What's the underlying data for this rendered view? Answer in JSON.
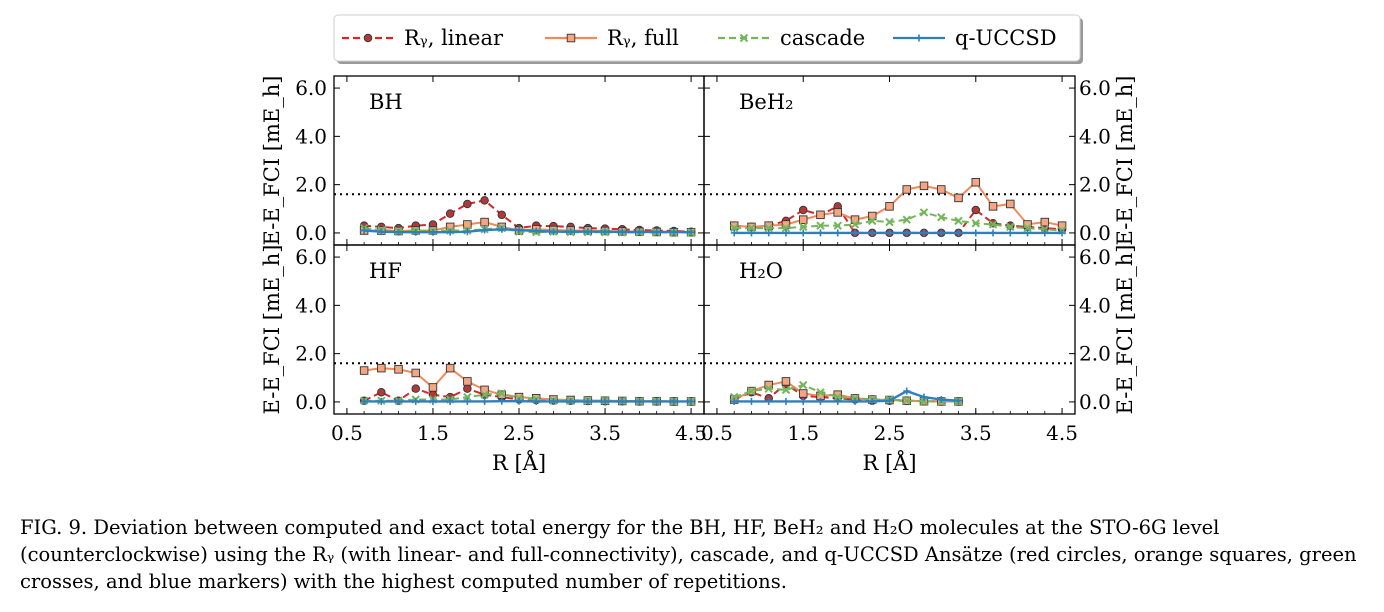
{
  "caption": "FIG. 9.  Deviation between computed and exact total energy for the BH, HF, BeH₂ and H₂O molecules at the STO-6G level (counterclockwise) using the Rᵧ (with linear- and full-connectivity), cascade, and q-UCCSD Ansätze (red circles, orange squares, green crosses, and blue markers) with the highest computed number of repetitions.",
  "colors": {
    "ry_linear": "#d62728",
    "ry_linear_face": "#b03a3a",
    "ry_full": "#ef8a5a",
    "ry_full_face": "#f4a582",
    "cascade": "#74b55b",
    "q_uccsd": "#2e7fc0"
  },
  "legend": [
    {
      "key": "ry_linear",
      "label": "Rᵧ, linear",
      "marker": "circle",
      "dash": "dashed"
    },
    {
      "key": "ry_full",
      "label": "Rᵧ, full",
      "marker": "square",
      "dash": "solid"
    },
    {
      "key": "cascade",
      "label": "cascade",
      "marker": "cross",
      "dash": "dashed"
    },
    {
      "key": "q_uccsd",
      "label": "q-UCCSD",
      "marker": "plus",
      "dash": "solid"
    }
  ],
  "chart_data": [
    {
      "type": "line",
      "title": "BH",
      "xlabel": "",
      "ylabel": "E-E_FCI [mE_h]",
      "xlim": [
        0.35,
        4.65
      ],
      "ylim": [
        -0.5,
        6.5
      ],
      "xticks": [
        "0.5",
        "1.5",
        "2.5",
        "3.5",
        "4.5"
      ],
      "yticks": [
        "0.0",
        "2.0",
        "4.0",
        "6.0"
      ],
      "threshold": 1.6,
      "x": [
        0.7,
        0.9,
        1.1,
        1.3,
        1.5,
        1.7,
        1.9,
        2.1,
        2.3,
        2.5,
        2.7,
        2.9,
        3.1,
        3.3,
        3.5,
        3.7,
        3.9,
        4.1,
        4.3,
        4.5
      ],
      "series": [
        {
          "name": "Rᵧ, linear",
          "values": [
            0.3,
            0.25,
            0.2,
            0.3,
            0.35,
            0.8,
            1.2,
            1.35,
            0.75,
            0.2,
            0.3,
            0.28,
            0.25,
            0.2,
            0.18,
            0.15,
            0.12,
            0.1,
            0.08,
            0.05
          ]
        },
        {
          "name": "Rᵧ, full",
          "values": [
            0.1,
            0.1,
            0.08,
            0.1,
            0.1,
            0.25,
            0.35,
            0.45,
            0.25,
            0.1,
            0.15,
            0.12,
            0.1,
            0.1,
            0.08,
            0.06,
            0.05,
            0.04,
            0.03,
            0.03
          ]
        },
        {
          "name": "cascade",
          "values": [
            0.2,
            0.12,
            0.08,
            0.08,
            0.08,
            0.1,
            0.1,
            0.15,
            0.2,
            0.05,
            0.03,
            0.05,
            0.03,
            0.03,
            0.03,
            0.02,
            0.02,
            0.02,
            0.02,
            0.02
          ]
        },
        {
          "name": "q-UCCSD",
          "values": [
            0.1,
            0.05,
            0.03,
            0.03,
            0.03,
            0.03,
            0.05,
            0.12,
            0.15,
            0.12,
            0.08,
            0.05,
            0.05,
            0.05,
            0.05,
            0.04,
            0.04,
            0.04,
            0.04,
            0.03
          ]
        }
      ]
    },
    {
      "type": "line",
      "title": "BeH₂",
      "xlabel": "",
      "ylabel": "E-E_FCI [mE_h]",
      "xlim": [
        0.35,
        4.65
      ],
      "ylim": [
        -0.5,
        6.5
      ],
      "xticks": [
        "0.5",
        "1.5",
        "2.5",
        "3.5",
        "4.5"
      ],
      "yticks": [
        "0.0",
        "2.0",
        "4.0",
        "6.0"
      ],
      "threshold": 1.6,
      "x": [
        0.7,
        0.9,
        1.1,
        1.3,
        1.5,
        1.7,
        1.9,
        2.1,
        2.3,
        2.5,
        2.7,
        2.9,
        3.1,
        3.3,
        3.5,
        3.7,
        3.9,
        4.1,
        4.3,
        4.5
      ],
      "series": [
        {
          "name": "Rᵧ, linear",
          "values": [
            0.3,
            0.25,
            0.3,
            0.5,
            0.95,
            0.75,
            1.1,
            0.0,
            0.0,
            0.0,
            0.0,
            0.0,
            0.0,
            0.0,
            0.95,
            0.4,
            0.3,
            0.25,
            0.2,
            0.15
          ]
        },
        {
          "name": "Rᵧ, full",
          "values": [
            0.3,
            0.25,
            0.3,
            0.35,
            0.55,
            0.75,
            0.85,
            0.55,
            0.7,
            1.1,
            1.8,
            1.95,
            1.8,
            1.45,
            2.1,
            1.1,
            1.2,
            0.35,
            0.45,
            0.3
          ]
        },
        {
          "name": "cascade",
          "values": [
            0.2,
            0.2,
            0.2,
            0.2,
            0.25,
            0.3,
            0.3,
            0.35,
            0.5,
            0.45,
            0.55,
            0.85,
            0.65,
            0.5,
            0.4,
            0.35,
            0.25,
            0.2,
            0.15,
            0.1
          ]
        },
        {
          "name": "q-UCCSD",
          "values": [
            0.0,
            0.0,
            0.0,
            0.0,
            0.0,
            0.0,
            0.0,
            0.0,
            0.0,
            0.0,
            0.0,
            0.0,
            0.0,
            0.0,
            0.0,
            0.0,
            0.0,
            0.0,
            0.0,
            0.0
          ]
        }
      ]
    },
    {
      "type": "line",
      "title": "HF",
      "xlabel": "R [Å]",
      "ylabel": "E-E_FCI [mE_h]",
      "xlim": [
        0.35,
        4.65
      ],
      "ylim": [
        -0.5,
        6.5
      ],
      "xticks": [
        "0.5",
        "1.5",
        "2.5",
        "3.5",
        "4.5"
      ],
      "yticks": [
        "0.0",
        "2.0",
        "4.0",
        "6.0"
      ],
      "threshold": 1.6,
      "x": [
        0.7,
        0.9,
        1.1,
        1.3,
        1.5,
        1.7,
        1.9,
        2.1,
        2.3,
        2.5,
        2.7,
        2.9,
        3.1,
        3.3,
        3.5,
        3.7,
        3.9,
        4.1,
        4.3,
        4.5
      ],
      "series": [
        {
          "name": "Rᵧ, linear",
          "values": [
            0.05,
            0.4,
            0.05,
            0.55,
            0.3,
            0.2,
            0.55,
            0.3,
            0.2,
            0.1,
            0.08,
            0.06,
            0.05,
            0.04,
            0.03,
            0.03,
            0.02,
            0.02,
            0.02,
            0.02
          ]
        },
        {
          "name": "Rᵧ, full",
          "values": [
            1.3,
            1.4,
            1.35,
            1.2,
            0.6,
            1.4,
            0.85,
            0.5,
            0.3,
            0.2,
            0.15,
            0.1,
            0.08,
            0.06,
            0.05,
            0.04,
            0.03,
            0.03,
            0.02,
            0.02
          ]
        },
        {
          "name": "cascade",
          "values": [
            0.05,
            0.05,
            0.05,
            0.1,
            0.1,
            0.1,
            0.2,
            0.3,
            0.35,
            0.15,
            0.1,
            0.05,
            0.05,
            0.05,
            0.05,
            0.04,
            0.03,
            0.03,
            0.02,
            0.02
          ]
        },
        {
          "name": "q-UCCSD",
          "values": [
            0.02,
            0.02,
            0.02,
            0.02,
            0.02,
            0.02,
            0.02,
            0.02,
            0.03,
            0.03,
            0.02,
            0.02,
            0.02,
            0.02,
            0.02,
            0.02,
            0.02,
            0.02,
            0.02,
            0.02
          ]
        }
      ]
    },
    {
      "type": "line",
      "title": "H₂O",
      "xlabel": "R [Å]",
      "ylabel": "E-E_FCI [mE_h]",
      "xlim": [
        0.35,
        4.65
      ],
      "ylim": [
        -0.5,
        6.5
      ],
      "xticks": [
        "0.5",
        "1.5",
        "2.5",
        "3.5",
        "4.5"
      ],
      "yticks": [
        "0.0",
        "2.0",
        "4.0",
        "6.0"
      ],
      "threshold": 1.6,
      "x": [
        0.7,
        0.9,
        1.1,
        1.3,
        1.5,
        1.7,
        1.9,
        2.1,
        2.3,
        2.5,
        2.7,
        2.9,
        3.1,
        3.3
      ],
      "series": [
        {
          "name": "Rᵧ, linear",
          "values": [
            0.1,
            0.4,
            0.15,
            0.75,
            0.25,
            0.2,
            0.15,
            0.1,
            0.05,
            0.05,
            0.05,
            0.03,
            0.02,
            0.02
          ]
        },
        {
          "name": "Rᵧ, full",
          "values": [
            0.1,
            0.45,
            0.7,
            0.85,
            0.35,
            0.25,
            0.3,
            0.15,
            0.1,
            0.08,
            0.05,
            0.03,
            0.02,
            0.02
          ]
        },
        {
          "name": "cascade",
          "values": [
            0.2,
            0.45,
            0.55,
            0.5,
            0.7,
            0.4,
            0.2,
            0.15,
            0.1,
            0.1,
            0.05,
            0.03,
            0.02,
            0.02
          ]
        },
        {
          "name": "q-UCCSD",
          "values": [
            0.02,
            0.02,
            0.02,
            0.02,
            0.02,
            0.02,
            0.02,
            0.02,
            0.02,
            0.05,
            0.45,
            0.2,
            0.1,
            0.05
          ]
        }
      ]
    }
  ]
}
